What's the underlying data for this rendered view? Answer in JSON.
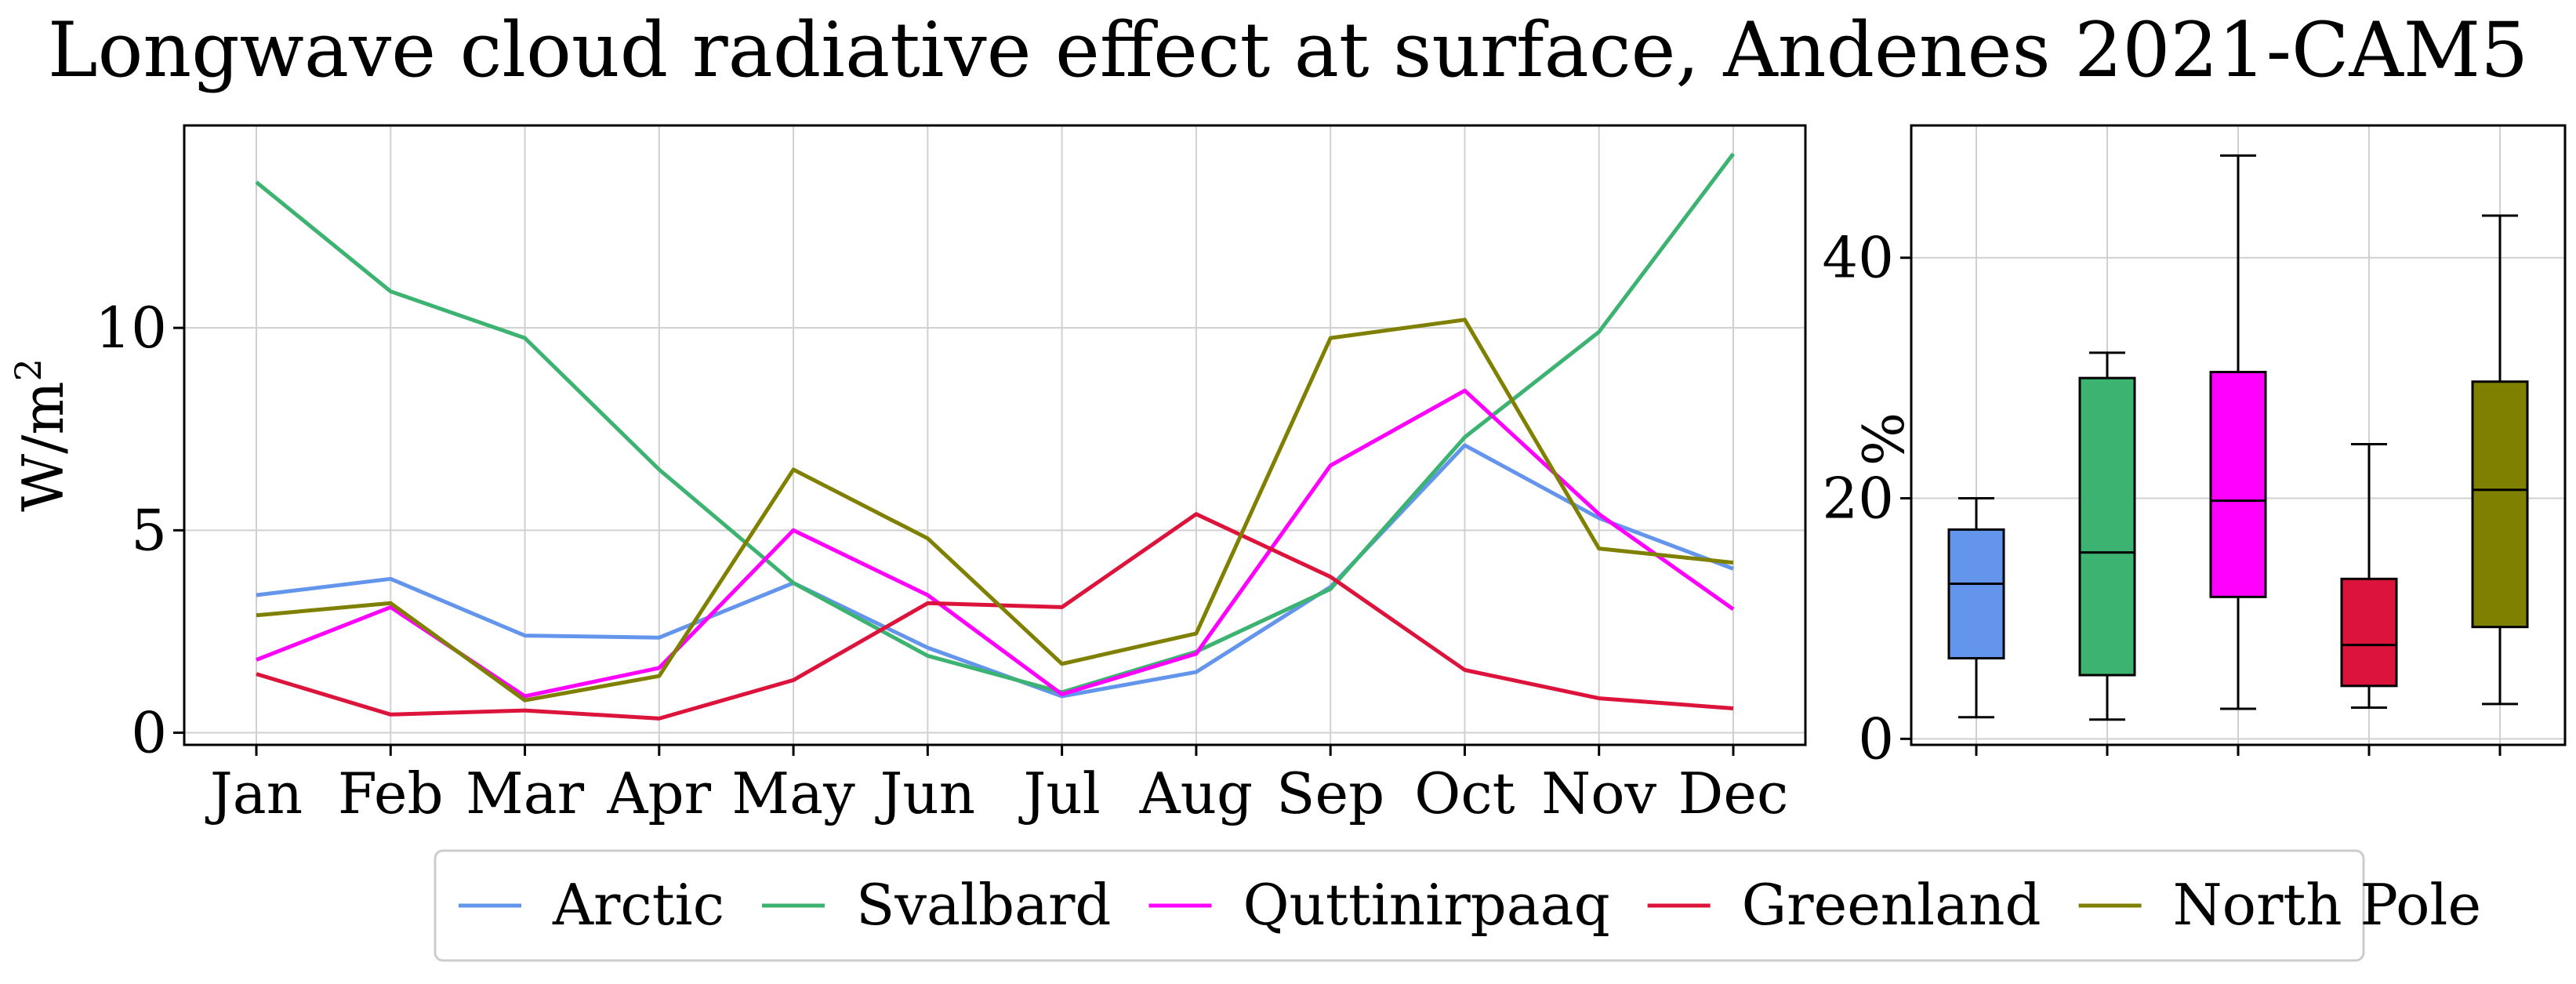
{
  "title": "Longwave cloud radiative effect at surface, Andenes 2021-CAM5",
  "chart_data": [
    {
      "type": "line",
      "title": "",
      "xlabel": "",
      "ylabel": "W/m²",
      "ylabel_base": "W/m",
      "ylabel_sup": "2",
      "categories": [
        "Jan",
        "Feb",
        "Mar",
        "Apr",
        "May",
        "Jun",
        "Jul",
        "Aug",
        "Sep",
        "Oct",
        "Nov",
        "Dec"
      ],
      "ylim": [
        -0.3,
        15.0
      ],
      "yticks": [
        0,
        5,
        10
      ],
      "grid": true,
      "series": [
        {
          "name": "Arctic",
          "color": "#6495ED",
          "values": [
            3.4,
            3.8,
            2.4,
            2.35,
            3.7,
            2.1,
            0.9,
            1.5,
            3.6,
            7.1,
            5.3,
            4.05
          ]
        },
        {
          "name": "Svalbard",
          "color": "#3CB371",
          "values": [
            13.6,
            10.9,
            9.75,
            6.5,
            3.7,
            1.9,
            1.0,
            2.0,
            3.55,
            7.3,
            9.9,
            14.3
          ]
        },
        {
          "name": "Quttinirpaaq",
          "color": "#FF00FF",
          "values": [
            1.8,
            3.1,
            0.9,
            1.6,
            5.0,
            3.4,
            0.95,
            1.95,
            6.6,
            8.45,
            5.4,
            3.05
          ]
        },
        {
          "name": "Greenland",
          "color": "#DC143C",
          "values": [
            1.45,
            0.45,
            0.55,
            0.35,
            1.3,
            3.2,
            3.1,
            5.4,
            3.85,
            1.55,
            0.85,
            0.6
          ]
        },
        {
          "name": "North Pole",
          "color": "#808000",
          "values": [
            2.9,
            3.2,
            0.8,
            1.4,
            6.5,
            4.8,
            1.7,
            2.45,
            9.75,
            10.2,
            4.55,
            4.2
          ]
        }
      ]
    },
    {
      "type": "box",
      "title": "",
      "xlabel": "",
      "ylabel": "%",
      "ylim": [
        -0.5,
        51.0
      ],
      "yticks": [
        0,
        20,
        40
      ],
      "grid": true,
      "boxes": [
        {
          "name": "Arctic",
          "color": "#6495ED",
          "whisker_low": 1.8,
          "q1": 6.7,
          "median": 12.9,
          "q3": 17.4,
          "whisker_high": 20.0
        },
        {
          "name": "Svalbard",
          "color": "#3CB371",
          "whisker_low": 1.6,
          "q1": 5.3,
          "median": 15.5,
          "q3": 30.0,
          "whisker_high": 32.1
        },
        {
          "name": "Quttinirpaaq",
          "color": "#FF00FF",
          "whisker_low": 2.5,
          "q1": 11.8,
          "median": 19.8,
          "q3": 30.5,
          "whisker_high": 48.5
        },
        {
          "name": "Greenland",
          "color": "#DC143C",
          "whisker_low": 2.6,
          "q1": 4.4,
          "median": 7.8,
          "q3": 13.3,
          "whisker_high": 24.5
        },
        {
          "name": "North Pole",
          "color": "#808000",
          "whisker_low": 2.9,
          "q1": 9.3,
          "median": 20.7,
          "q3": 29.7,
          "whisker_high": 43.5
        }
      ]
    }
  ],
  "legend": {
    "placement": "bottom-center",
    "entries": [
      {
        "name": "Arctic",
        "color": "#6495ED"
      },
      {
        "name": "Svalbard",
        "color": "#3CB371"
      },
      {
        "name": "Quttinirpaaq",
        "color": "#FF00FF"
      },
      {
        "name": "Greenland",
        "color": "#DC143C"
      },
      {
        "name": "North Pole",
        "color": "#808000"
      }
    ]
  }
}
